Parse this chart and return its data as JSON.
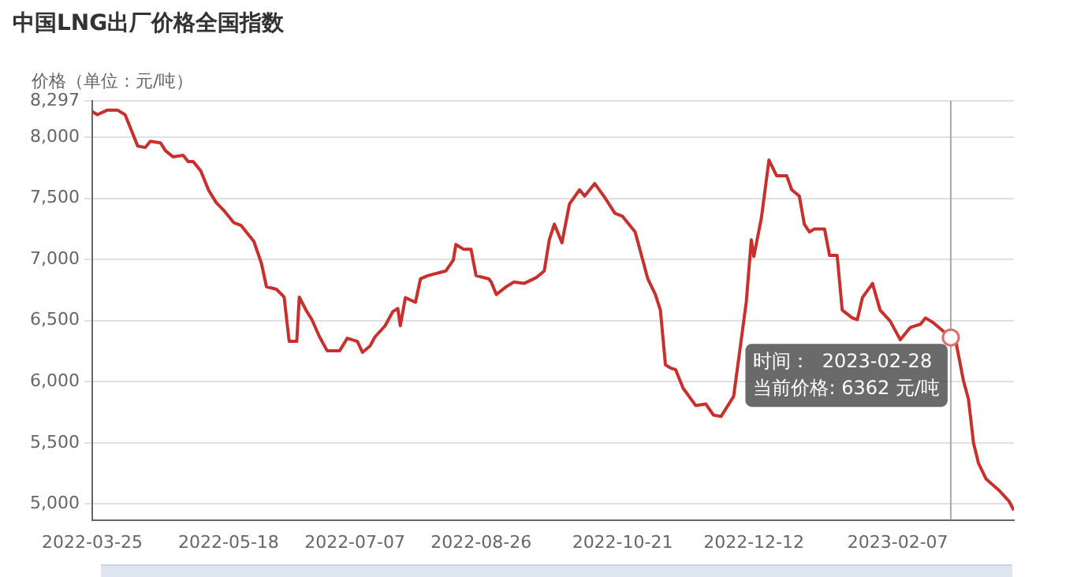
{
  "chart_data": {
    "type": "line",
    "title": "中国LNG出厂价格全国指数",
    "ylabel": "价格（单位：元/吨）",
    "x": [
      "2022-03-25",
      "2022-03-27",
      "2022-03-31",
      "2022-04-04",
      "2022-04-07",
      "2022-04-09",
      "2022-04-12",
      "2022-04-15",
      "2022-04-17",
      "2022-04-21",
      "2022-04-23",
      "2022-04-26",
      "2022-04-30",
      "2022-05-02",
      "2022-05-04",
      "2022-05-07",
      "2022-05-10",
      "2022-05-13",
      "2022-05-16",
      "2022-05-20",
      "2022-05-23",
      "2022-05-28",
      "2022-05-31",
      "2022-06-02",
      "2022-06-06",
      "2022-06-09",
      "2022-06-11",
      "2022-06-14",
      "2022-06-15",
      "2022-06-18",
      "2022-06-20",
      "2022-06-23",
      "2022-06-26",
      "2022-07-01",
      "2022-07-04",
      "2022-07-08",
      "2022-07-10",
      "2022-07-13",
      "2022-07-15",
      "2022-07-19",
      "2022-07-22",
      "2022-07-24",
      "2022-07-25",
      "2022-07-27",
      "2022-07-31",
      "2022-08-02",
      "2022-08-05",
      "2022-08-12",
      "2022-08-15",
      "2022-08-16",
      "2022-08-19",
      "2022-08-22",
      "2022-08-24",
      "2022-08-29",
      "2022-08-30",
      "2022-09-01",
      "2022-09-05",
      "2022-09-08",
      "2022-09-12",
      "2022-09-17",
      "2022-09-20",
      "2022-09-22",
      "2022-09-24",
      "2022-09-27",
      "2022-09-30",
      "2022-10-04",
      "2022-10-06",
      "2022-10-10",
      "2022-10-14",
      "2022-10-18",
      "2022-10-21",
      "2022-10-26",
      "2022-10-29",
      "2022-10-31",
      "2022-11-03",
      "2022-11-05",
      "2022-11-07",
      "2022-11-09",
      "2022-11-11",
      "2022-11-14",
      "2022-11-19",
      "2022-11-23",
      "2022-11-26",
      "2022-11-29",
      "2022-12-04",
      "2022-12-09",
      "2022-12-11",
      "2022-12-12",
      "2022-12-15",
      "2022-12-18",
      "2022-12-21",
      "2022-12-25",
      "2022-12-27",
      "2022-12-30",
      "2023-01-01",
      "2023-01-03",
      "2023-01-05",
      "2023-01-09",
      "2023-01-11",
      "2023-01-14",
      "2023-01-16",
      "2023-01-20",
      "2023-01-22",
      "2023-01-24",
      "2023-01-28",
      "2023-01-31",
      "2023-02-04",
      "2023-02-08",
      "2023-02-12",
      "2023-02-16",
      "2023-02-18",
      "2023-02-21",
      "2023-02-28",
      "2023-03-02",
      "2023-03-05",
      "2023-03-07",
      "2023-03-09",
      "2023-03-11",
      "2023-03-14",
      "2023-03-19",
      "2023-03-23",
      "2023-03-25"
    ],
    "series": [
      {
        "color": "#c9302c",
        "values": [
          8210,
          8184,
          8222,
          8222,
          8184,
          8082,
          7928,
          7916,
          7967,
          7954,
          7890,
          7839,
          7852,
          7800,
          7800,
          7724,
          7570,
          7468,
          7404,
          7302,
          7277,
          7148,
          6969,
          6777,
          6756,
          6692,
          6330,
          6330,
          6692,
          6573,
          6508,
          6368,
          6254,
          6254,
          6356,
          6330,
          6241,
          6292,
          6368,
          6458,
          6573,
          6599,
          6458,
          6688,
          6650,
          6842,
          6868,
          6906,
          6996,
          7123,
          7084,
          7084,
          6868,
          6842,
          6816,
          6714,
          6778,
          6816,
          6804,
          6854,
          6906,
          7161,
          7289,
          7136,
          7455,
          7570,
          7519,
          7621,
          7506,
          7378,
          7353,
          7225,
          6996,
          6842,
          6714,
          6586,
          6138,
          6113,
          6100,
          5947,
          5805,
          5818,
          5728,
          5716,
          5880,
          6650,
          7161,
          7024,
          7340,
          7813,
          7685,
          7685,
          7570,
          7519,
          7289,
          7225,
          7250,
          7250,
          7033,
          7033,
          6586,
          6522,
          6508,
          6688,
          6804,
          6586,
          6496,
          6343,
          6445,
          6471,
          6522,
          6484,
          6362,
          6330,
          6010,
          5857,
          5499,
          5332,
          5204,
          5114,
          5025,
          4948
        ]
      }
    ],
    "xlim": [
      "2022-03-25",
      "2023-03-25"
    ],
    "xticks": [
      "2022-03-25",
      "2022-05-18",
      "2022-07-07",
      "2022-08-26",
      "2022-10-21",
      "2022-12-12",
      "2023-02-07"
    ],
    "ylim": [
      4870,
      8297
    ],
    "yticks": [
      {
        "value": 5000,
        "label": "5,000"
      },
      {
        "value": 5500,
        "label": "5,500"
      },
      {
        "value": 6000,
        "label": "6,000"
      },
      {
        "value": 6500,
        "label": "6,500"
      },
      {
        "value": 7000,
        "label": "7,000"
      },
      {
        "value": 7500,
        "label": "7,500"
      },
      {
        "value": 8000,
        "label": "8,000"
      },
      {
        "value": 8297,
        "label": "8,297"
      }
    ],
    "grid": "y",
    "legend": false,
    "marker": "none",
    "line_style": "solid",
    "ref_lines": [
      {
        "axis": "x",
        "value": "2023-02-28",
        "color": "#aaaaaa"
      }
    ],
    "annotations": [
      {
        "text": "时间：  2023-02-28\n当前价格: 6362 元/吨",
        "x": "2023-02-28",
        "y": 6362
      }
    ]
  }
}
